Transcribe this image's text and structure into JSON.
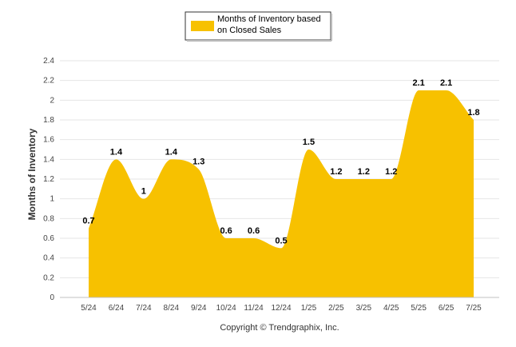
{
  "chart_data": {
    "type": "area",
    "categories": [
      "5/24",
      "6/24",
      "7/24",
      "8/24",
      "9/24",
      "10/24",
      "11/24",
      "12/24",
      "1/25",
      "2/25",
      "3/25",
      "4/25",
      "5/25",
      "6/25",
      "7/25"
    ],
    "series": [
      {
        "name": "Months of Inventory based on Closed Sales",
        "values": [
          0.7,
          1.4,
          1.0,
          1.4,
          1.3,
          0.6,
          0.6,
          0.5,
          1.5,
          1.2,
          1.2,
          1.2,
          2.1,
          2.1,
          1.8
        ],
        "labels": [
          "0.7",
          "1.4",
          "1",
          "1.4",
          "1.3",
          "0.6",
          "0.6",
          "0.5",
          "1.5",
          "1.2",
          "1.2",
          "1.2",
          "2.1",
          "2.1",
          "1.8"
        ],
        "color": "#F7C100"
      }
    ],
    "ylabel": "Months of Inventory",
    "ylim": [
      0,
      2.4
    ],
    "yticks": [
      "0",
      "0.2",
      "0.4",
      "0.6",
      "0.8",
      "1",
      "1.2",
      "1.4",
      "1.6",
      "1.8",
      "2",
      "2.2",
      "2.4"
    ],
    "grid": true,
    "legend_position": "top-center",
    "legend": {
      "line1": "Months of Inventory based",
      "line2": "on Closed Sales"
    },
    "credit": "Copyright © Trendgraphix, Inc."
  }
}
